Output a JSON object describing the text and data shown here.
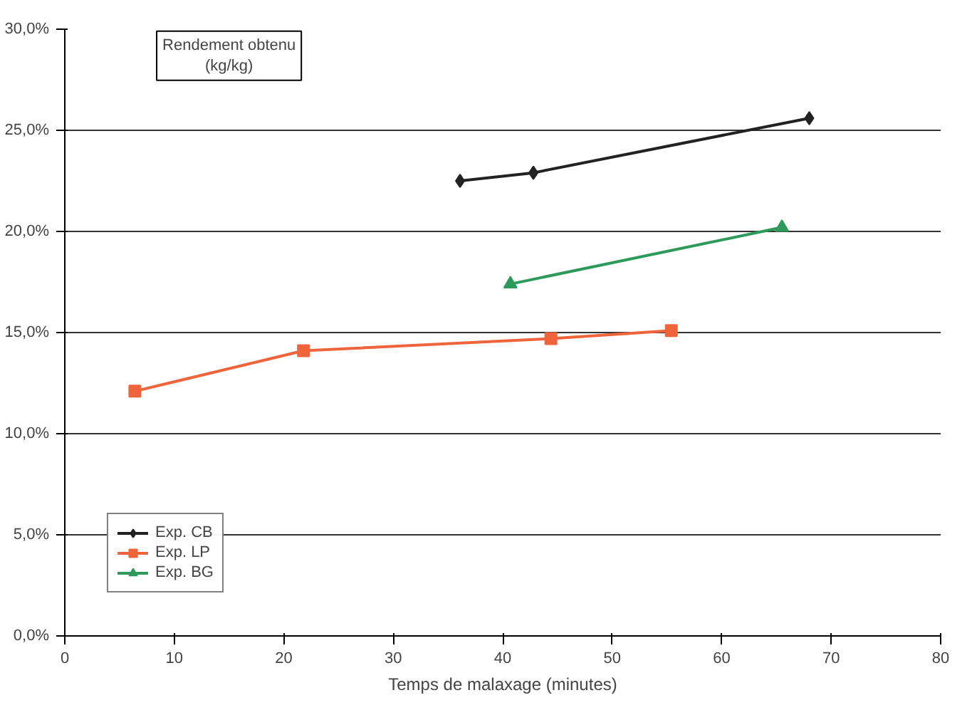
{
  "chart_data": {
    "type": "line",
    "ylabel": "Rendement obtenu (kg/kg)",
    "xlabel": "Temps de malaxage (minutes)",
    "xlim": [
      0,
      80
    ],
    "xticks": [
      0,
      10,
      20,
      30,
      40,
      50,
      60,
      70,
      80
    ],
    "ylim": [
      0,
      30
    ],
    "yticks": [
      {
        "value": 0,
        "label": "0,0%"
      },
      {
        "value": 5,
        "label": "5,0%"
      },
      {
        "value": 10,
        "label": "10,0%"
      },
      {
        "value": 15,
        "label": "15,0%"
      },
      {
        "value": 20,
        "label": "20,0%"
      },
      {
        "value": 25,
        "label": "25,0%"
      },
      {
        "value": 30,
        "label": "30,0%"
      }
    ],
    "grid": "y",
    "legend": "bottom left",
    "series": [
      {
        "name": "Exp. CB",
        "color": "#222222",
        "marker": "diamond",
        "x": [
          36.1,
          42.8,
          68.0
        ],
        "values": [
          22.5,
          22.9,
          25.6
        ]
      },
      {
        "name": "Exp. LP",
        "color": "#f0643c",
        "marker": "square",
        "x": [
          6.4,
          21.8,
          44.4,
          55.4
        ],
        "values": [
          12.1,
          14.1,
          14.7,
          15.1
        ]
      },
      {
        "name": "Exp. BG",
        "color": "#2e9a5a",
        "marker": "triangle",
        "x": [
          40.7,
          65.5
        ],
        "values": [
          17.4,
          20.2
        ]
      }
    ]
  }
}
